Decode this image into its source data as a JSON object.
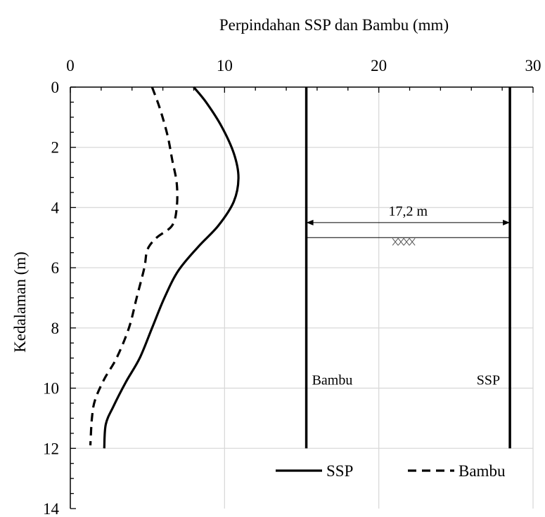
{
  "chart_data": {
    "type": "line",
    "title": "",
    "xlabel": "Perpindahan SSP dan Bambu (mm)",
    "ylabel": "Kedalaman (m)",
    "xlim": [
      0,
      30
    ],
    "ylim": [
      0,
      14
    ],
    "y_inverted": true,
    "x_axis_position": "top",
    "x_ticks": [
      "0",
      "10",
      "20",
      "30"
    ],
    "y_ticks": [
      "0",
      "2",
      "4",
      "6",
      "8",
      "10",
      "12",
      "14"
    ],
    "grid": true,
    "legend_position": "bottom-right",
    "series": [
      {
        "name": "SSP",
        "style": "solid",
        "color": "#000000",
        "points": [
          {
            "x": 8.0,
            "y": 0.0
          },
          {
            "x": 8.8,
            "y": 0.5
          },
          {
            "x": 9.8,
            "y": 1.3
          },
          {
            "x": 10.6,
            "y": 2.2
          },
          {
            "x": 10.9,
            "y": 3.0
          },
          {
            "x": 10.6,
            "y": 3.8
          },
          {
            "x": 9.6,
            "y": 4.6
          },
          {
            "x": 8.3,
            "y": 5.3
          },
          {
            "x": 7.0,
            "y": 6.1
          },
          {
            "x": 6.1,
            "y": 7.0
          },
          {
            "x": 5.3,
            "y": 8.0
          },
          {
            "x": 4.5,
            "y": 9.0
          },
          {
            "x": 3.6,
            "y": 9.8
          },
          {
            "x": 2.8,
            "y": 10.6
          },
          {
            "x": 2.3,
            "y": 11.2
          },
          {
            "x": 2.2,
            "y": 12.0
          }
        ]
      },
      {
        "name": "Bambu",
        "style": "dashed",
        "color": "#000000",
        "points": [
          {
            "x": 5.3,
            "y": 0.0
          },
          {
            "x": 5.8,
            "y": 0.7
          },
          {
            "x": 6.3,
            "y": 1.6
          },
          {
            "x": 6.6,
            "y": 2.4
          },
          {
            "x": 6.9,
            "y": 3.2
          },
          {
            "x": 6.9,
            "y": 4.0
          },
          {
            "x": 6.6,
            "y": 4.6
          },
          {
            "x": 5.6,
            "y": 5.0
          },
          {
            "x": 5.0,
            "y": 5.4
          },
          {
            "x": 4.8,
            "y": 6.0
          },
          {
            "x": 4.3,
            "y": 7.0
          },
          {
            "x": 3.8,
            "y": 8.0
          },
          {
            "x": 3.0,
            "y": 9.0
          },
          {
            "x": 2.2,
            "y": 9.7
          },
          {
            "x": 1.6,
            "y": 10.4
          },
          {
            "x": 1.4,
            "y": 11.0
          },
          {
            "x": 1.3,
            "y": 11.9
          }
        ]
      }
    ],
    "annotations": {
      "walls": [
        {
          "label": "Bambu",
          "x": 15.3,
          "y_top": 0.0,
          "y_bottom": 12.0,
          "label_y": 10.0
        },
        {
          "label": "SSP",
          "x": 28.5,
          "y_top": 0.0,
          "y_bottom": 12.0,
          "label_y": 10.0
        }
      ],
      "dimension": {
        "label": "17,2 m",
        "x_start": 15.3,
        "x_end": 28.5,
        "y": 4.5
      },
      "water_level": {
        "y": 5.0,
        "x_start": 15.3,
        "x_end": 28.5,
        "symbol_x": 21.8
      }
    }
  }
}
